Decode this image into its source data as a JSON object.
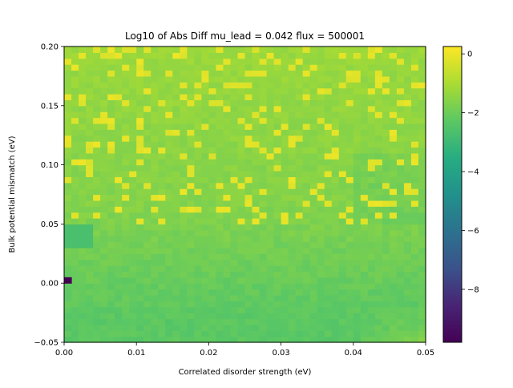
{
  "chart_data": {
    "type": "heatmap",
    "title": "Log10 of Abs Diff mu_lead = 0.042 flux = 500001",
    "xlabel": "Correlated disorder strength (eV)",
    "ylabel": "Bulk potential mismatch (eV)",
    "xlim": [
      0.0,
      0.05
    ],
    "ylim": [
      -0.05,
      0.2
    ],
    "x_ticks": [
      0.0,
      0.01,
      0.02,
      0.03,
      0.04,
      0.05
    ],
    "x_tick_labels": [
      "0.00",
      "0.01",
      "0.02",
      "0.03",
      "0.04",
      "0.05"
    ],
    "y_ticks": [
      -0.05,
      0.0,
      0.05,
      0.1,
      0.15,
      0.2
    ],
    "y_tick_labels": [
      "−0.05",
      "0.00",
      "0.05",
      "0.10",
      "0.15",
      "0.20"
    ],
    "colorbar": {
      "colormap": "viridis",
      "range": [
        -9.8,
        0.25
      ],
      "ticks": [
        0,
        -2,
        -4,
        -6,
        -8
      ],
      "tick_labels": [
        "0",
        "−2",
        "−4",
        "−6",
        "−8"
      ]
    },
    "grid": false,
    "value_summary": {
      "background": -1.6,
      "lower_region": -2.3,
      "bright_streaks": 0.0,
      "minimum_point": {
        "x": 0.0005,
        "y": 0.0025,
        "value": -9.8
      }
    }
  }
}
